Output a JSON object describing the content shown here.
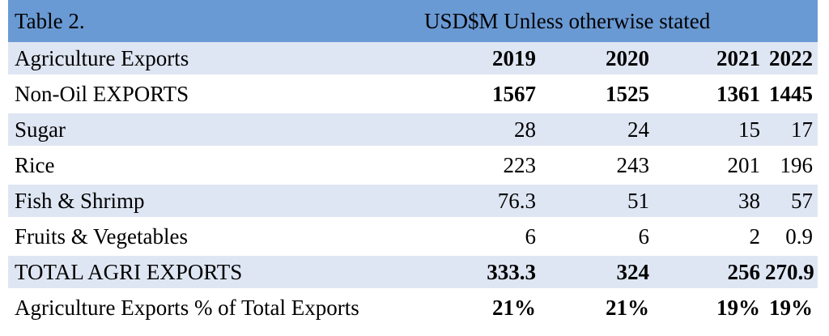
{
  "table": {
    "title": "Table 2.",
    "unit_note": "USD$M Unless otherwise stated",
    "header": {
      "label": "Agriculture Exports",
      "years": [
        "2019",
        "2020",
        "2021",
        "2022"
      ]
    },
    "rows": [
      {
        "label": "Non-Oil EXPORTS",
        "values": [
          "1567",
          "1525",
          "1361",
          "1445"
        ],
        "bold": true
      },
      {
        "label": "Sugar",
        "values": [
          "28",
          "24",
          "15",
          "17"
        ],
        "bold": false
      },
      {
        "label": "Rice",
        "values": [
          "223",
          "243",
          "201",
          "196"
        ],
        "bold": false
      },
      {
        "label": "Fish & Shrimp",
        "values": [
          "76.3",
          "51",
          "38",
          "57"
        ],
        "bold": false
      },
      {
        "label": "Fruits & Vegetables",
        "values": [
          "6",
          "6",
          "2",
          "0.9"
        ],
        "bold": false
      },
      {
        "label": "TOTAL AGRI EXPORTS",
        "values": [
          "333.3",
          "324",
          "256",
          "270.9"
        ],
        "bold": true
      },
      {
        "label": "Agriculture Exports % of Total Exports",
        "values": [
          "21%",
          "21%",
          "19%",
          "19%"
        ],
        "bold": true
      }
    ],
    "colors": {
      "title_bar": "#6a9ad4",
      "band": "#dfe6f3"
    }
  }
}
